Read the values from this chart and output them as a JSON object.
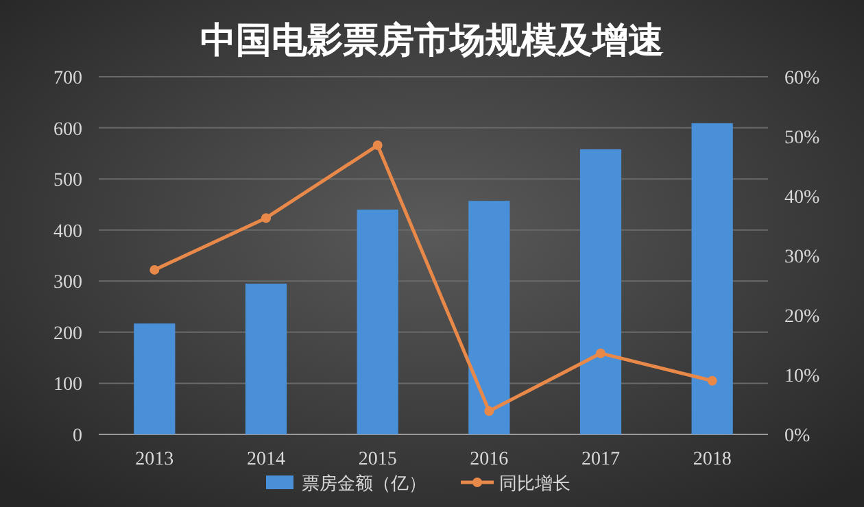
{
  "chart_data": {
    "type": "bar",
    "title": "中国电影票房市场规模及增速",
    "categories": [
      "2013",
      "2014",
      "2015",
      "2016",
      "2017",
      "2018"
    ],
    "series": [
      {
        "name": "票房金额（亿）",
        "color": "#4a90d9",
        "values": [
          217,
          295,
          440,
          457,
          558,
          609
        ]
      },
      {
        "name": "同比增长",
        "type": "line",
        "axis": "y2",
        "color": "#e8894a",
        "marker": "circle",
        "values": [
          27.6,
          36.3,
          48.5,
          3.9,
          13.6,
          9.0
        ]
      }
    ],
    "ylim": [
      0,
      700
    ],
    "yticks": [
      0,
      100,
      200,
      300,
      400,
      500,
      600,
      700
    ],
    "y2lim": [
      0,
      60
    ],
    "y2ticks": [
      {
        "value": 0,
        "label": "0%"
      },
      {
        "value": 10,
        "label": "10%"
      },
      {
        "value": 20,
        "label": "20%"
      },
      {
        "value": 30,
        "label": "30%"
      },
      {
        "value": 40,
        "label": "40%"
      },
      {
        "value": 50,
        "label": "50%"
      },
      {
        "value": 60,
        "label": "60%"
      }
    ],
    "grid": "y",
    "legend": "bottom"
  }
}
